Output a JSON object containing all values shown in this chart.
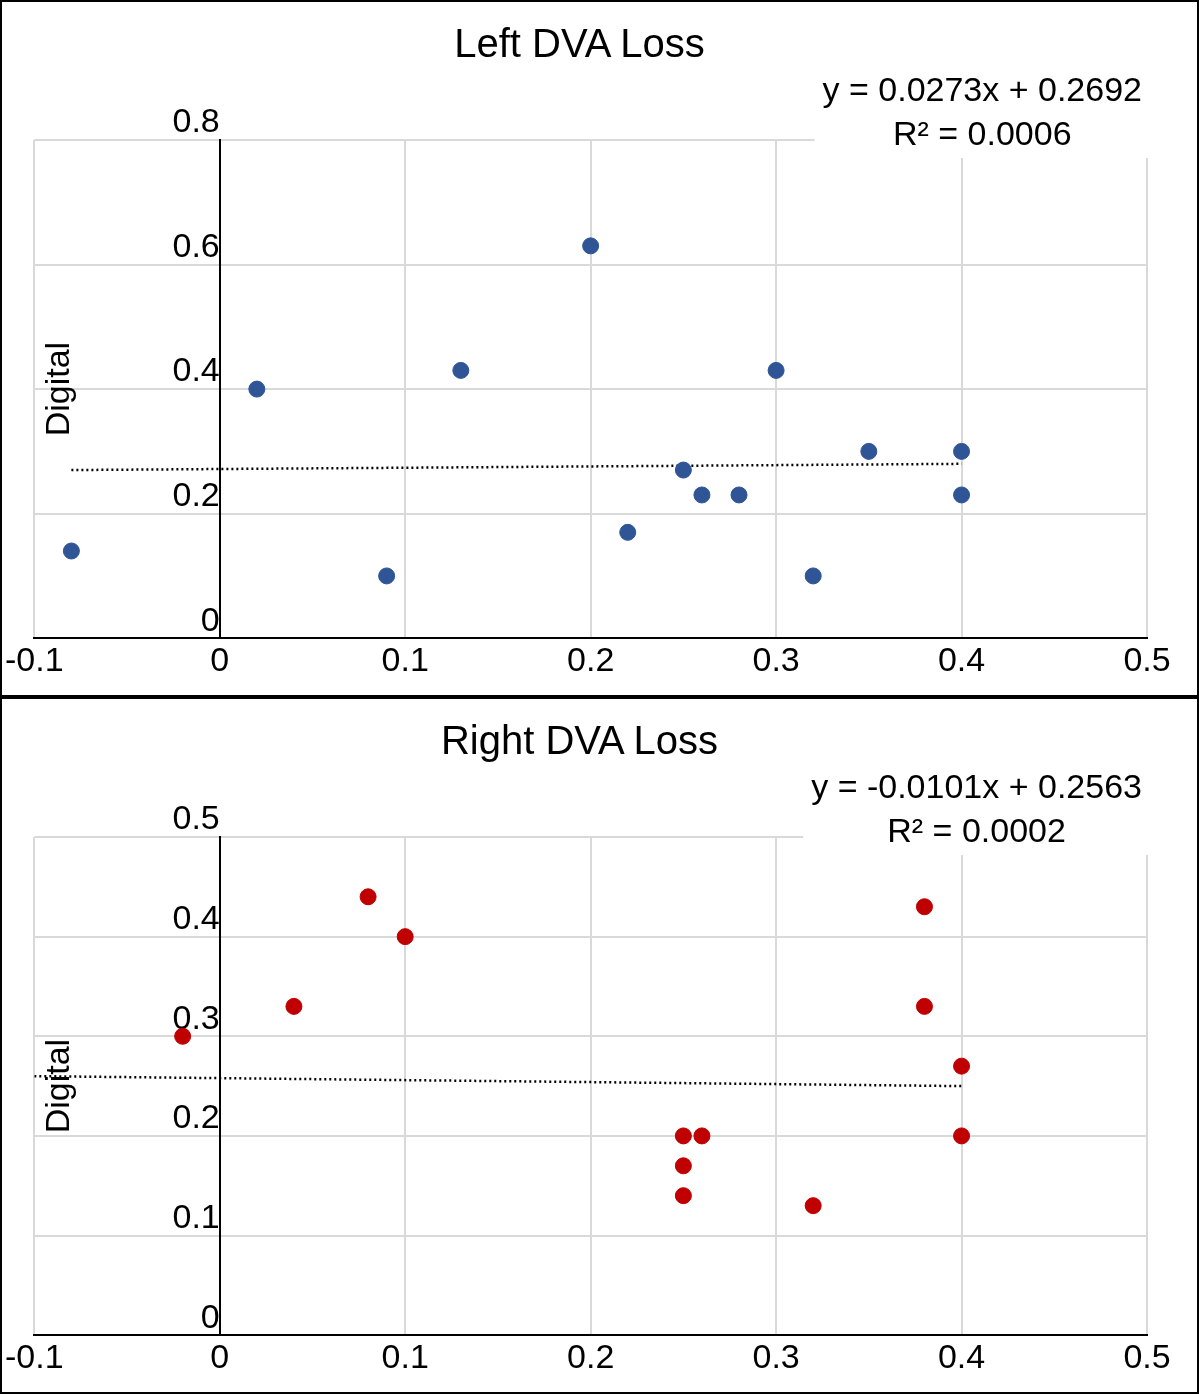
{
  "chart_data": [
    {
      "type": "scatter",
      "title": "Left DVA Loss",
      "ylabel": "Digital",
      "annotations": [
        "y = 0.0273x + 0.2692",
        "R² = 0.0006"
      ],
      "xlim": [
        -0.1,
        0.5
      ],
      "xticks": [
        -0.1,
        0,
        0.1,
        0.2,
        0.3,
        0.4,
        0.5
      ],
      "ylim": [
        0,
        0.8
      ],
      "yticks": [
        0,
        0.2,
        0.4,
        0.6,
        0.8
      ],
      "grid": true,
      "legend": false,
      "series": [
        {
          "type": "scatter",
          "color": "#2f5597",
          "marker": "circle",
          "x": [
            -0.08,
            0.02,
            0.09,
            0.13,
            0.2,
            0.22,
            0.25,
            0.26,
            0.28,
            0.3,
            0.32,
            0.35,
            0.4,
            0.4
          ],
          "values": [
            0.14,
            0.4,
            0.1,
            0.43,
            0.63,
            0.17,
            0.27,
            0.23,
            0.23,
            0.43,
            0.1,
            0.3,
            0.3,
            0.23
          ]
        },
        {
          "type": "line",
          "color": "#000000",
          "marker": "none",
          "line_style": "dotted",
          "x": [
            -0.08,
            0.4
          ],
          "values": [
            0.27,
            0.28
          ]
        }
      ]
    },
    {
      "type": "scatter",
      "title": "Right DVA Loss",
      "ylabel": "Digital",
      "annotations": [
        "y = -0.0101x + 0.2563",
        "R² = 0.0002"
      ],
      "xlim": [
        -0.1,
        0.5
      ],
      "xticks": [
        -0.1,
        0,
        0.1,
        0.2,
        0.3,
        0.4,
        0.5
      ],
      "ylim": [
        0,
        0.5
      ],
      "yticks": [
        0,
        0.1,
        0.2,
        0.3,
        0.4,
        0.5
      ],
      "grid": true,
      "legend": false,
      "series": [
        {
          "type": "scatter",
          "color": "#c00000",
          "marker": "circle",
          "x": [
            -0.02,
            0.04,
            0.08,
            0.1,
            0.25,
            0.26,
            0.25,
            0.25,
            0.32,
            0.38,
            0.38,
            0.4,
            0.4
          ],
          "values": [
            0.3,
            0.33,
            0.44,
            0.4,
            0.2,
            0.2,
            0.17,
            0.14,
            0.13,
            0.43,
            0.33,
            0.27,
            0.2
          ]
        },
        {
          "type": "line",
          "color": "#000000",
          "marker": "none",
          "line_style": "dotted",
          "x": [
            -0.1,
            0.4
          ],
          "values": [
            0.26,
            0.25
          ]
        }
      ]
    }
  ]
}
